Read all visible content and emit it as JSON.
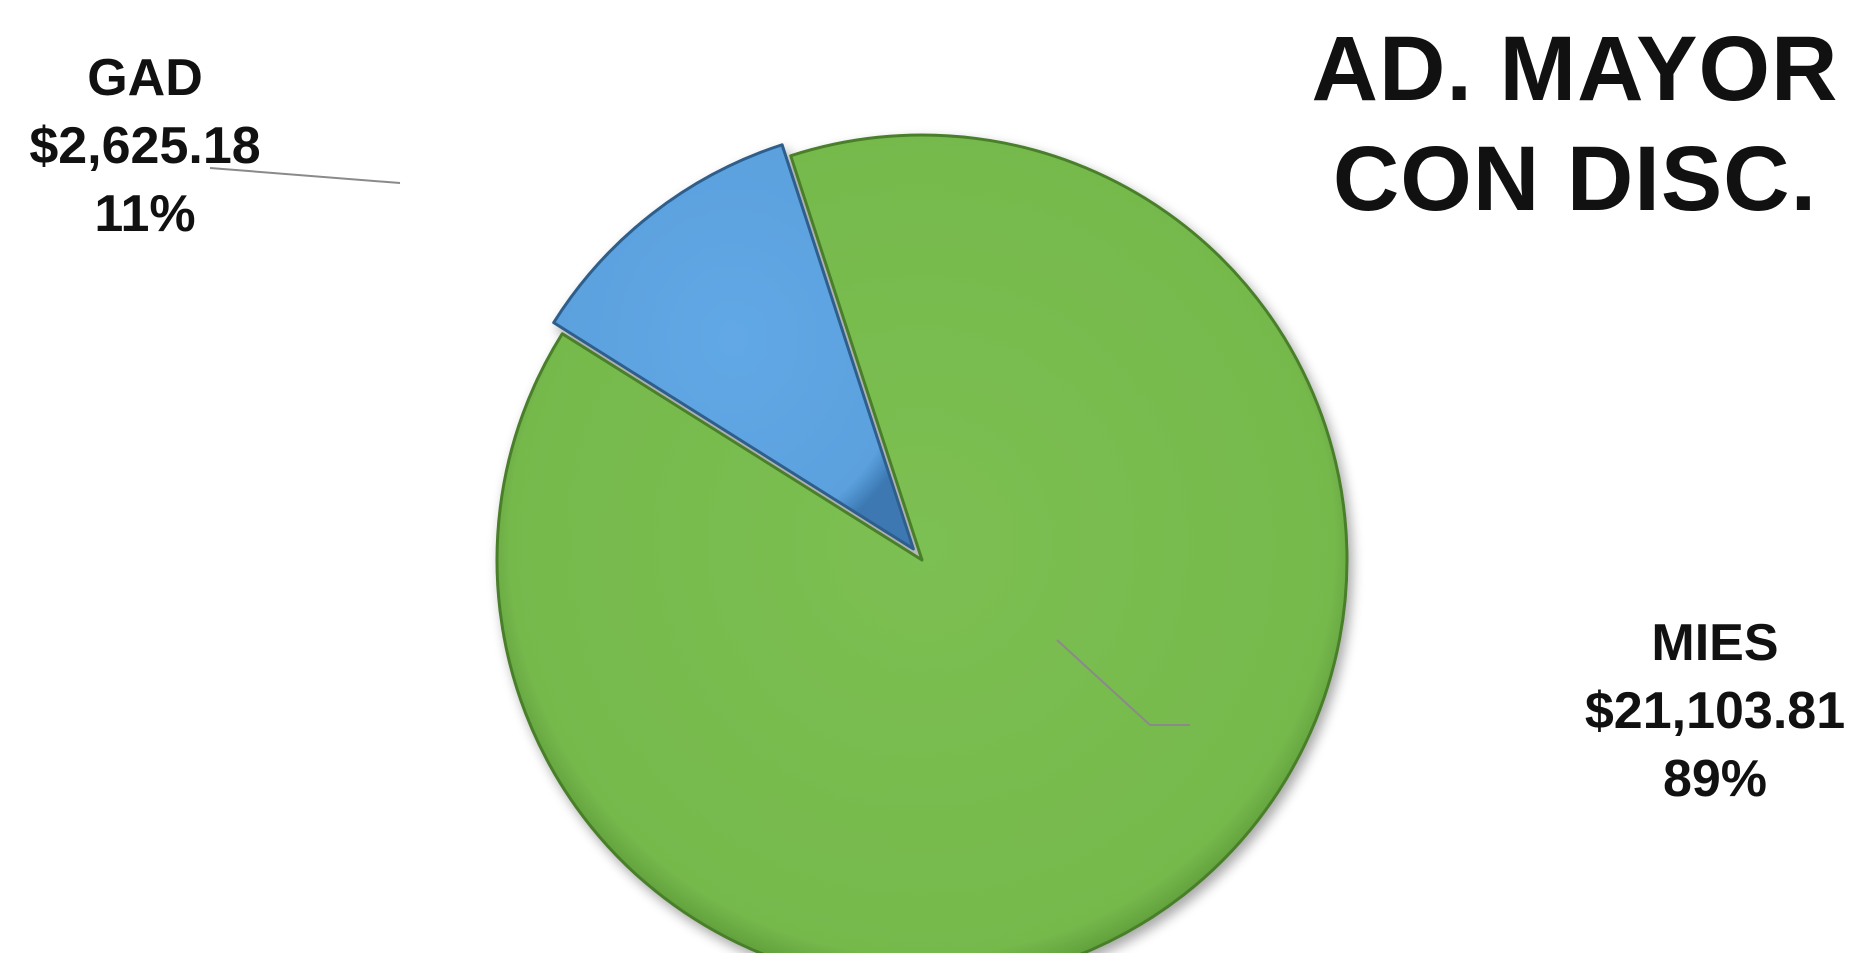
{
  "chart_data": {
    "type": "pie",
    "title_lines": [
      "AD. MAYOR",
      "CON DISC."
    ],
    "slices": [
      {
        "name": "GAD",
        "value": 2625.18,
        "value_label": "$2,625.18",
        "percent_label": "11%",
        "color": "#5ea4e2"
      },
      {
        "name": "MIES",
        "value": 21103.81,
        "value_label": "$21,103.81",
        "percent_label": "89%",
        "color": "#77b94e"
      }
    ]
  }
}
